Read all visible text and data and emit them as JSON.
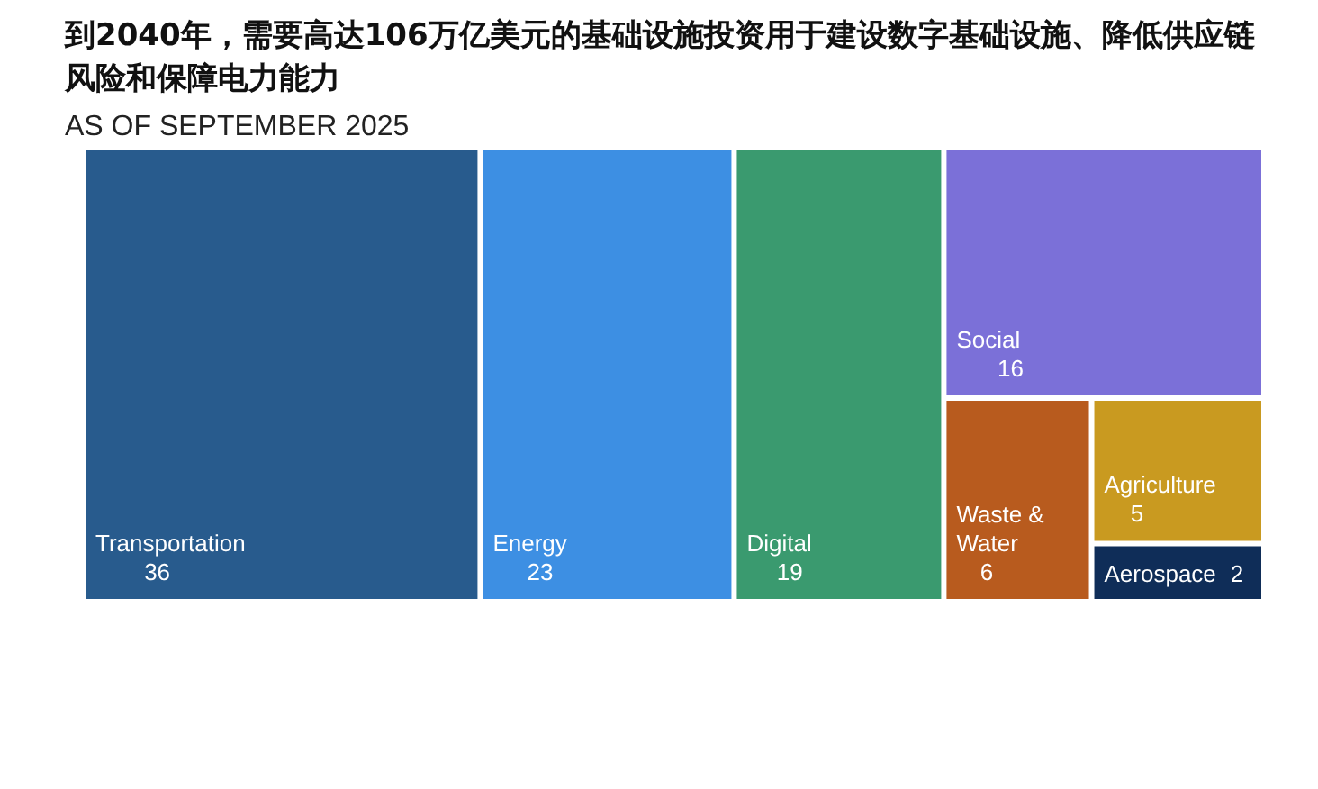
{
  "chart_data": {
    "type": "other",
    "title": "到2040年，需要高达106万亿美元的基础设施投资用于建设数字基础设施、降低供应链风险和保障电力能力",
    "subtitle": "AS OF SEPTEMBER 2025",
    "categories": [
      "Transportation",
      "Energy",
      "Digital",
      "Social",
      "Waste & Water",
      "Agriculture",
      "Aerospace"
    ],
    "values": [
      36,
      23,
      19,
      16,
      6,
      5,
      2
    ],
    "data_labels": true,
    "colors": [
      "#285b8d",
      "#3d8fe3",
      "#3a9a6f",
      "#7b70d8",
      "#b85b1e",
      "#c99a20",
      "#0f2d58"
    ]
  }
}
